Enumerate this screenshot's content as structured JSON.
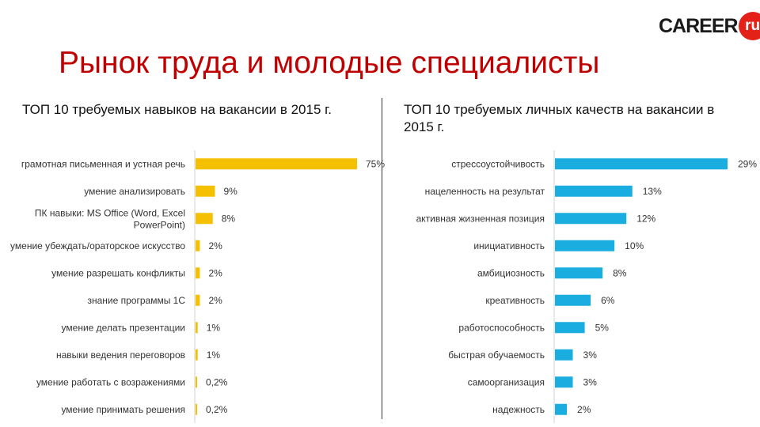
{
  "logo": {
    "word": "CAREER",
    "suffix": "ru"
  },
  "title": "Рынок труда и молодые специалисты",
  "charts": {
    "left": {
      "subtitle": "ТОП 10 требуемых навыков на вакансии в 2015 г."
    },
    "right": {
      "subtitle": "ТОП 10 требуемых личных качеств на вакансии в 2015 г."
    }
  },
  "chart_data": [
    {
      "type": "bar",
      "orientation": "horizontal",
      "title": "ТОП 10 требуемых навыков на вакансии в 2015 г.",
      "color": "#f5c000",
      "categories": [
        "грамотная письменная и устная речь",
        "умение анализировать",
        "ПК навыки: MS Office (Word, Excel PowerPoint)",
        "умение убеждать/ораторское искусство",
        "умение разрешать конфликты",
        "знание программы 1С",
        "умение делать презентации",
        "навыки ведения переговоров",
        "умение работать с возражениями",
        "умение принимать решения"
      ],
      "values": [
        75,
        9,
        8,
        2,
        2,
        2,
        1,
        1,
        0.2,
        0.2
      ],
      "labels": [
        "75%",
        "9%",
        "8%",
        "2%",
        "2%",
        "2%",
        "1%",
        "1%",
        "0,2%",
        "0,2%"
      ],
      "xlim": [
        0,
        75
      ]
    },
    {
      "type": "bar",
      "orientation": "horizontal",
      "title": "ТОП 10 требуемых личных качеств на вакансии в 2015 г.",
      "color": "#1aaee0",
      "categories": [
        "стрессоустойчивость",
        "нацеленность на результат",
        "активная жизненная позиция",
        "инициативность",
        "амбициозность",
        "креативность",
        "работоспособность",
        "быстрая обучаемость",
        "самоорганизация",
        "надежность"
      ],
      "values": [
        29,
        13,
        12,
        10,
        8,
        6,
        5,
        3,
        3,
        2
      ],
      "labels": [
        "29%",
        "13%",
        "12%",
        "10%",
        "8%",
        "6%",
        "5%",
        "3%",
        "3%",
        "2%"
      ],
      "xlim": [
        0,
        29
      ]
    }
  ]
}
